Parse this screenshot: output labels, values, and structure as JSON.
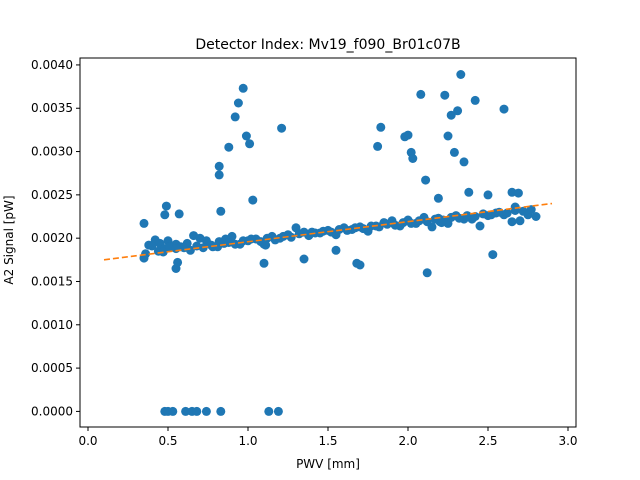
{
  "chart_data": {
    "type": "scatter",
    "title": "Detector Index: Mv19_f090_Br01c07B",
    "xlabel": "PWV [mm]",
    "ylabel": "A2 Signal [pW]",
    "xlim": [
      -0.05,
      3.05
    ],
    "ylim": [
      -0.00018,
      0.00408
    ],
    "x_ticks": [
      0.0,
      0.5,
      1.0,
      1.5,
      2.0,
      2.5,
      3.0
    ],
    "x_tick_labels": [
      "0.0",
      "0.5",
      "1.0",
      "1.5",
      "2.0",
      "2.5",
      "3.0"
    ],
    "y_ticks": [
      0.0,
      0.0005,
      0.001,
      0.0015,
      0.002,
      0.0025,
      0.003,
      0.0035,
      0.004
    ],
    "y_tick_labels": [
      "0.0000",
      "0.0005",
      "0.0010",
      "0.0015",
      "0.0020",
      "0.0025",
      "0.0030",
      "0.0035",
      "0.0040"
    ],
    "grid": false,
    "series": [
      {
        "name": "data",
        "kind": "scatter",
        "color": "#1f77b4",
        "x": [
          0.48,
          0.5,
          0.53,
          0.61,
          0.65,
          0.68,
          0.74,
          0.83,
          1.13,
          1.19,
          0.35,
          0.38,
          0.42,
          0.45,
          0.48,
          0.5,
          0.52,
          0.55,
          0.58,
          0.62,
          0.66,
          0.7,
          0.74,
          0.78,
          0.82,
          0.86,
          0.9,
          0.95,
          1.0,
          1.05,
          1.1,
          1.15,
          1.2,
          1.25,
          1.3,
          1.35,
          1.4,
          1.45,
          1.5,
          1.55,
          1.6,
          1.65,
          1.7,
          1.75,
          1.8,
          1.85,
          1.9,
          1.95,
          2.0,
          2.05,
          2.1,
          2.15,
          2.2,
          2.25,
          2.3,
          2.35,
          2.4,
          2.45,
          2.5,
          2.55,
          2.6,
          2.65,
          2.7,
          2.75,
          2.8,
          0.36,
          0.4,
          0.44,
          0.47,
          0.51,
          0.55,
          0.6,
          0.64,
          0.68,
          0.72,
          0.77,
          0.81,
          0.85,
          0.88,
          0.92,
          0.97,
          1.02,
          1.08,
          1.12,
          1.17,
          1.22,
          1.27,
          1.32,
          1.38,
          1.42,
          1.47,
          1.52,
          1.57,
          1.62,
          1.67,
          1.72,
          1.77,
          1.82,
          1.87,
          1.92,
          1.97,
          2.02,
          2.07,
          2.12,
          2.17,
          2.22,
          2.27,
          2.32,
          2.37,
          2.42,
          2.47,
          2.52,
          2.57,
          2.62,
          2.67,
          2.72,
          2.77,
          0.97,
          0.99,
          0.94,
          0.92,
          0.88,
          0.82,
          0.82,
          1.01,
          1.03,
          1.21,
          0.35,
          0.55,
          0.56,
          0.57,
          0.48,
          0.49,
          0.83,
          1.1,
          1.11,
          1.35,
          1.55,
          1.68,
          1.7,
          2.12,
          2.53,
          1.81,
          1.83,
          1.98,
          2.0,
          2.02,
          2.03,
          2.08,
          2.11,
          2.19,
          2.23,
          2.25,
          2.27,
          2.29,
          2.31,
          2.33,
          2.35,
          2.38,
          2.42,
          2.5,
          2.6,
          2.65,
          2.67,
          2.69,
          2.19,
          2.21
        ],
        "y": [
          0.0,
          0.0,
          0.0,
          0.0,
          0.0,
          0.0,
          0.0,
          0.0,
          0.0,
          0.0,
          0.00217,
          0.00192,
          0.00198,
          0.00194,
          0.00188,
          0.00197,
          0.0019,
          0.00193,
          0.0019,
          0.00194,
          0.00203,
          0.002,
          0.00197,
          0.0019,
          0.00196,
          0.00199,
          0.00202,
          0.00193,
          0.00197,
          0.00199,
          0.00193,
          0.00202,
          0.002,
          0.00204,
          0.00212,
          0.00207,
          0.00207,
          0.00206,
          0.00209,
          0.00204,
          0.00212,
          0.0021,
          0.00213,
          0.00208,
          0.00214,
          0.00218,
          0.0022,
          0.00214,
          0.00221,
          0.00217,
          0.00224,
          0.00213,
          0.00219,
          0.00217,
          0.00226,
          0.00222,
          0.00222,
          0.00214,
          0.00226,
          0.00229,
          0.00227,
          0.00219,
          0.0022,
          0.00227,
          0.00225,
          0.00182,
          0.00191,
          0.00185,
          0.00184,
          0.0019,
          0.00188,
          0.00189,
          0.00186,
          0.00191,
          0.00189,
          0.00192,
          0.0019,
          0.00194,
          0.00195,
          0.00193,
          0.00197,
          0.00199,
          0.00196,
          0.002,
          0.00198,
          0.00202,
          0.00201,
          0.00205,
          0.00203,
          0.00206,
          0.00208,
          0.00207,
          0.0021,
          0.00209,
          0.00212,
          0.00211,
          0.00214,
          0.00213,
          0.00216,
          0.00215,
          0.00218,
          0.00217,
          0.0022,
          0.00219,
          0.00222,
          0.00221,
          0.00224,
          0.00223,
          0.00226,
          0.00225,
          0.00228,
          0.00227,
          0.0023,
          0.00229,
          0.00232,
          0.00231,
          0.00233,
          0.00373,
          0.00318,
          0.00356,
          0.0034,
          0.00305,
          0.00283,
          0.00273,
          0.00309,
          0.00244,
          0.00327,
          0.00177,
          0.00165,
          0.00172,
          0.00228,
          0.00227,
          0.00237,
          0.00231,
          0.00171,
          0.00192,
          0.00176,
          0.00186,
          0.00171,
          0.00169,
          0.0016,
          0.00181,
          0.00306,
          0.00328,
          0.00317,
          0.00319,
          0.00299,
          0.00292,
          0.00366,
          0.00267,
          0.00246,
          0.00365,
          0.00318,
          0.00342,
          0.00299,
          0.00347,
          0.00389,
          0.00288,
          0.00253,
          0.00359,
          0.0025,
          0.00349,
          0.00253,
          0.00236,
          0.00252,
          0.00223,
          0.00218
        ]
      },
      {
        "name": "fit",
        "kind": "dashed-line",
        "color": "#ff7f0e",
        "x": [
          0.1,
          2.9
        ],
        "y": [
          0.00175,
          0.0024
        ]
      }
    ]
  }
}
